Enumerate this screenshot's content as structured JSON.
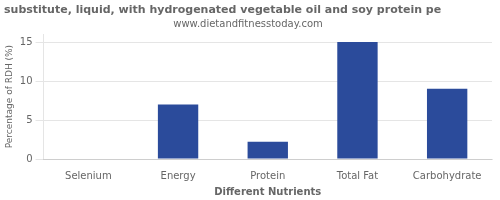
{
  "chart_data": {
    "type": "bar",
    "title": "substitute, liquid, with hydrogenated vegetable oil and soy protein pe",
    "subtitle": "www.dietandfitnesstoday.com",
    "categories": [
      "Selenium",
      "Energy",
      "Protein",
      "Total Fat",
      "Carbohydrate"
    ],
    "values": [
      0,
      7.0,
      2.2,
      15.0,
      9.0
    ],
    "color": "#2b4b9b",
    "xlabel": "Different Nutrients",
    "ylabel": "Percentage of RDH (%)",
    "ylim": [
      0,
      16
    ],
    "yticks": [
      0,
      5,
      10,
      15
    ],
    "grid": "y"
  }
}
